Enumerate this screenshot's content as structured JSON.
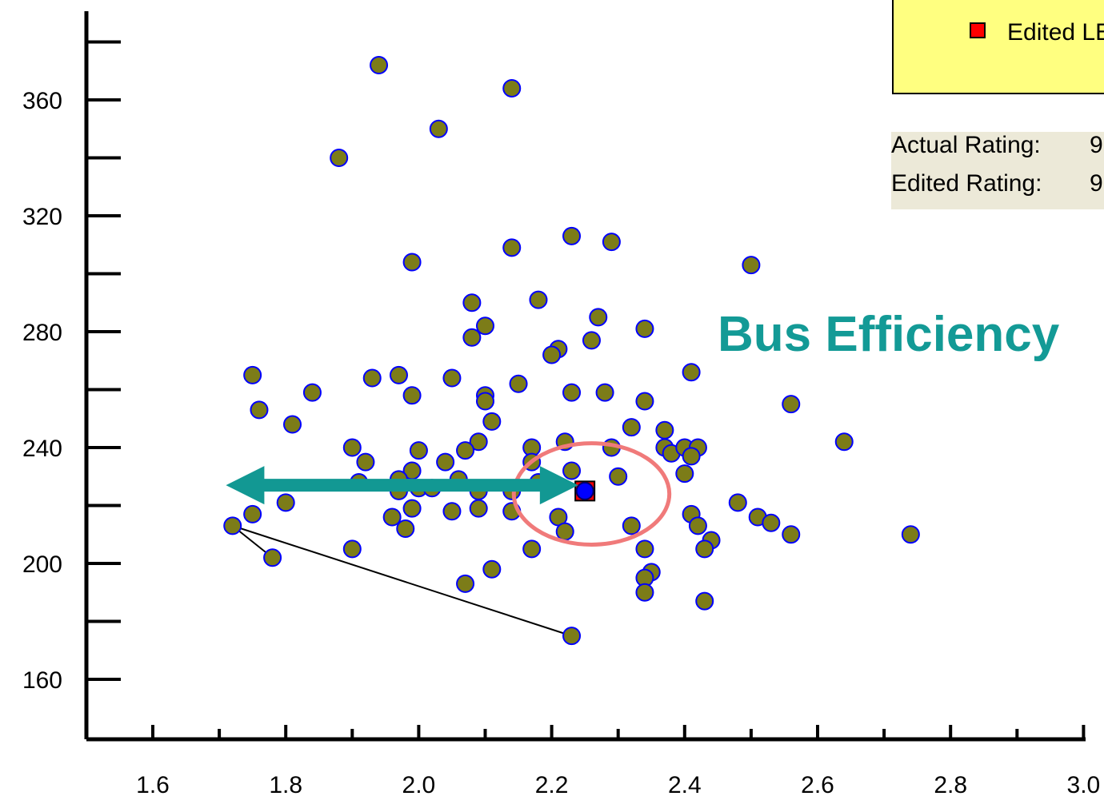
{
  "chart_data": {
    "type": "scatter",
    "title": "",
    "xlabel": "",
    "ylabel": "",
    "xlim": [
      1.5,
      3.0
    ],
    "ylim": [
      140,
      380
    ],
    "x_ticks": [
      1.6,
      1.8,
      2.0,
      2.2,
      2.4,
      2.6,
      2.8,
      3.0
    ],
    "x_tick_labels": [
      "1.6",
      "1.8",
      "2.0",
      "2.2",
      "2.4",
      "2.6",
      "2.8",
      "3.0"
    ],
    "y_ticks": [
      160,
      200,
      240,
      280,
      320,
      360
    ],
    "y_tick_labels": [
      "160",
      "200",
      "240",
      "280",
      "320",
      "360"
    ],
    "grid": false,
    "colors": {
      "point_fill": "#7c7c18",
      "point_edge": "#0000ff",
      "highlight_point": "#0000ff",
      "edited_marker": "#ff0000",
      "arrow": "#129893",
      "ellipse": "#f07a7a",
      "annotation": "#139a96"
    },
    "points": [
      [
        1.94,
        372
      ],
      [
        2.14,
        364
      ],
      [
        2.03,
        350
      ],
      [
        1.88,
        340
      ],
      [
        2.23,
        313
      ],
      [
        2.29,
        311
      ],
      [
        2.14,
        309
      ],
      [
        1.99,
        304
      ],
      [
        2.5,
        303
      ],
      [
        2.08,
        290
      ],
      [
        2.18,
        291
      ],
      [
        2.27,
        285
      ],
      [
        2.1,
        282
      ],
      [
        2.08,
        278
      ],
      [
        2.34,
        281
      ],
      [
        2.26,
        277
      ],
      [
        2.21,
        274
      ],
      [
        2.2,
        272
      ],
      [
        1.75,
        265
      ],
      [
        1.93,
        264
      ],
      [
        1.97,
        265
      ],
      [
        2.05,
        264
      ],
      [
        2.41,
        266
      ],
      [
        1.84,
        259
      ],
      [
        1.99,
        258
      ],
      [
        2.1,
        258
      ],
      [
        2.15,
        262
      ],
      [
        2.23,
        259
      ],
      [
        2.28,
        259
      ],
      [
        2.1,
        256
      ],
      [
        2.34,
        256
      ],
      [
        2.56,
        255
      ],
      [
        1.76,
        253
      ],
      [
        2.11,
        249
      ],
      [
        1.81,
        248
      ],
      [
        2.32,
        247
      ],
      [
        2.37,
        246
      ],
      [
        2.09,
        242
      ],
      [
        2.22,
        242
      ],
      [
        2.64,
        242
      ],
      [
        1.9,
        240
      ],
      [
        2.0,
        239
      ],
      [
        2.07,
        239
      ],
      [
        2.17,
        240
      ],
      [
        2.29,
        240
      ],
      [
        2.37,
        240
      ],
      [
        2.38,
        238
      ],
      [
        2.4,
        240
      ],
      [
        2.42,
        240
      ],
      [
        2.41,
        237
      ],
      [
        1.92,
        235
      ],
      [
        2.04,
        235
      ],
      [
        2.17,
        235
      ],
      [
        1.99,
        232
      ],
      [
        2.23,
        232
      ],
      [
        2.4,
        231
      ],
      [
        2.3,
        230
      ],
      [
        1.91,
        228
      ],
      [
        1.97,
        229
      ],
      [
        2.06,
        229
      ],
      [
        2.18,
        228
      ],
      [
        2.0,
        226
      ],
      [
        2.02,
        226
      ],
      [
        2.09,
        225
      ],
      [
        2.14,
        225
      ],
      [
        1.97,
        225
      ],
      [
        1.8,
        221
      ],
      [
        2.48,
        221
      ],
      [
        1.99,
        219
      ],
      [
        2.05,
        218
      ],
      [
        2.09,
        219
      ],
      [
        2.14,
        218
      ],
      [
        2.41,
        217
      ],
      [
        1.75,
        217
      ],
      [
        1.96,
        216
      ],
      [
        2.21,
        216
      ],
      [
        2.51,
        216
      ],
      [
        2.53,
        214
      ],
      [
        1.72,
        213
      ],
      [
        2.32,
        213
      ],
      [
        2.42,
        213
      ],
      [
        1.98,
        212
      ],
      [
        2.22,
        211
      ],
      [
        2.56,
        210
      ],
      [
        2.74,
        210
      ],
      [
        2.44,
        208
      ],
      [
        1.9,
        205
      ],
      [
        2.17,
        205
      ],
      [
        2.34,
        205
      ],
      [
        2.43,
        205
      ],
      [
        1.78,
        202
      ],
      [
        2.11,
        198
      ],
      [
        2.35,
        197
      ],
      [
        2.34,
        195
      ],
      [
        2.07,
        193
      ],
      [
        2.34,
        190
      ],
      [
        2.43,
        187
      ],
      [
        2.23,
        175
      ]
    ],
    "line_segments": [
      [
        [
          1.72,
          213
        ],
        [
          1.78,
          202
        ]
      ],
      [
        [
          1.72,
          213
        ],
        [
          2.23,
          175
        ]
      ]
    ],
    "highlighted_point": [
      2.25,
      225
    ],
    "edited_marker_point": [
      2.25,
      225
    ],
    "arrow": {
      "from": [
        1.71,
        227
      ],
      "to": [
        2.24,
        227
      ],
      "direction": "both"
    },
    "ellipse": {
      "center": [
        2.26,
        224
      ],
      "rx": 0.117,
      "ry": 17.5
    },
    "annotations": [
      "Bus Efficiency"
    ],
    "legend": {
      "entries": [
        "Edited LE"
      ],
      "position": "top-right"
    }
  },
  "rating_panel": {
    "rows": [
      {
        "label": "Actual Rating:",
        "value": "9"
      },
      {
        "label": "Edited Rating:",
        "value": "9"
      }
    ]
  }
}
